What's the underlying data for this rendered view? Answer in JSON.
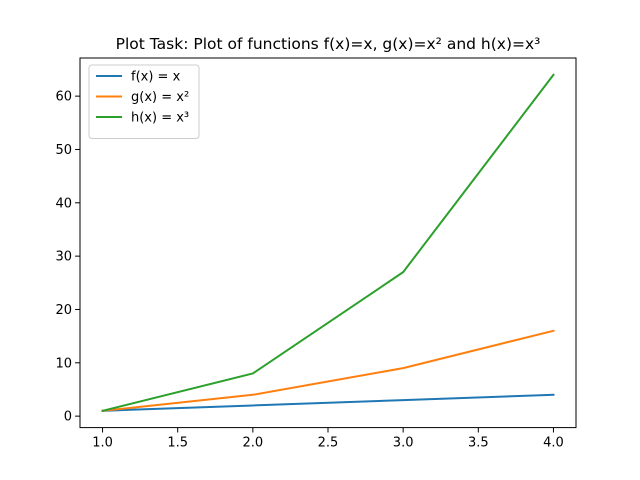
{
  "chart_data": {
    "type": "line",
    "title": "Plot Task: Plot of functions f(x)=x, g(x)=x² and h(x)=x³",
    "xlabel": "",
    "ylabel": "",
    "x": [
      1,
      2,
      3,
      4
    ],
    "xlim": [
      0.85,
      4.15
    ],
    "ylim": [
      -2.15,
      67.15
    ],
    "xticks": [
      1.0,
      1.5,
      2.0,
      2.5,
      3.0,
      3.5,
      4.0
    ],
    "xtick_labels": [
      "1.0",
      "1.5",
      "2.0",
      "2.5",
      "3.0",
      "3.5",
      "4.0"
    ],
    "yticks": [
      0,
      10,
      20,
      30,
      40,
      50,
      60
    ],
    "ytick_labels": [
      "0",
      "10",
      "20",
      "30",
      "40",
      "50",
      "60"
    ],
    "grid": false,
    "legend_position": "top-left",
    "series": [
      {
        "name": "f(x) = x",
        "color": "#1f77b4",
        "values": [
          1,
          2,
          3,
          4
        ]
      },
      {
        "name": "g(x) = x²",
        "color": "#ff7f0e",
        "values": [
          1,
          4,
          9,
          16
        ]
      },
      {
        "name": "h(x) = x³",
        "color": "#2ca02c",
        "values": [
          1,
          8,
          27,
          64
        ]
      }
    ]
  }
}
